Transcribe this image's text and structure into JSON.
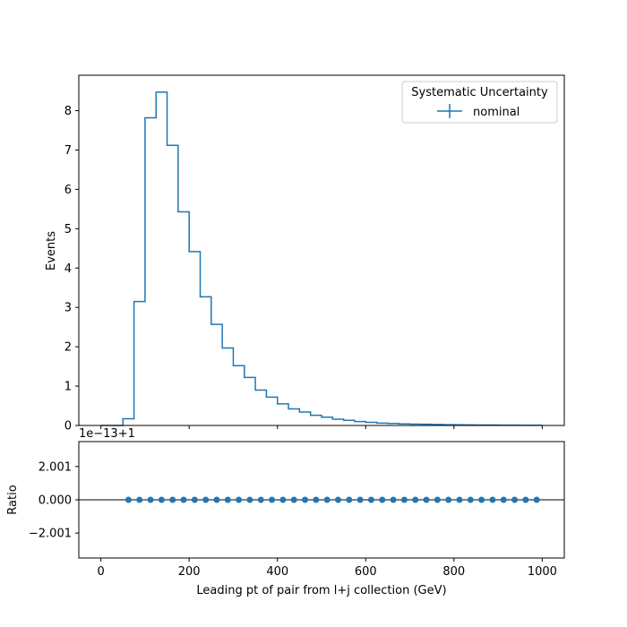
{
  "chart_data": [
    {
      "type": "step",
      "xlabel": "",
      "ylabel": "Events",
      "xlim": [
        -50,
        1050
      ],
      "ylim": [
        0,
        8.9
      ],
      "x_ticks": [
        0,
        200,
        400,
        600,
        800,
        1000
      ],
      "y_ticks": [
        0,
        1,
        2,
        3,
        4,
        5,
        6,
        7,
        8
      ],
      "y_tick_labels": [
        "0",
        "1",
        "2",
        "3",
        "4",
        "5",
        "6",
        "7",
        "8"
      ],
      "bin_edges": [
        0,
        25,
        50,
        75,
        100,
        125,
        150,
        175,
        200,
        225,
        250,
        275,
        300,
        325,
        350,
        375,
        400,
        425,
        450,
        475,
        500,
        525,
        550,
        575,
        600,
        625,
        650,
        675,
        700,
        725,
        750,
        775,
        800,
        825,
        850,
        875,
        900,
        925,
        950,
        975,
        1000
      ],
      "series": [
        {
          "name": "nominal",
          "color": "#1f77b4",
          "values": [
            0.0,
            0.0,
            0.17,
            3.15,
            7.82,
            8.47,
            7.12,
            5.43,
            4.42,
            3.27,
            2.57,
            1.97,
            1.52,
            1.22,
            0.9,
            0.72,
            0.55,
            0.42,
            0.34,
            0.26,
            0.21,
            0.16,
            0.13,
            0.1,
            0.08,
            0.06,
            0.05,
            0.04,
            0.035,
            0.03,
            0.025,
            0.02,
            0.017,
            0.015,
            0.012,
            0.01,
            0.009,
            0.008,
            0.007,
            0.006
          ]
        }
      ],
      "legend": {
        "title": "Systematic Uncertainty",
        "entries": [
          "nominal"
        ],
        "placement": "upper right"
      }
    },
    {
      "type": "scatter",
      "xlabel": "Leading pt of pair from l+j collection (GeV)",
      "ylabel": "Ratio",
      "xlim": [
        -50,
        1050
      ],
      "ylim": [
        -3.5,
        3.5
      ],
      "offset_label": "1e−13+1",
      "x_ticks": [
        0,
        200,
        400,
        600,
        800,
        1000
      ],
      "x_tick_labels": [
        "0",
        "200",
        "400",
        "600",
        "800",
        "1000"
      ],
      "y_ticks": [
        -2.001,
        0,
        2.001
      ],
      "y_tick_labels": [
        "−2.001",
        "0.000",
        "2.001"
      ],
      "reference_line": 0,
      "series": [
        {
          "name": "nominal",
          "color": "#1f77b4",
          "x": [
            62.5,
            87.5,
            112.5,
            137.5,
            162.5,
            187.5,
            212.5,
            237.5,
            262.5,
            287.5,
            312.5,
            337.5,
            362.5,
            387.5,
            412.5,
            437.5,
            462.5,
            487.5,
            512.5,
            537.5,
            562.5,
            587.5,
            612.5,
            637.5,
            662.5,
            687.5,
            712.5,
            737.5,
            762.5,
            787.5,
            812.5,
            837.5,
            862.5,
            887.5,
            912.5,
            937.5,
            962.5,
            987.5
          ],
          "y": [
            0,
            0,
            0,
            0,
            0,
            0,
            0,
            0,
            0,
            0,
            0,
            0,
            0,
            0,
            0,
            0,
            0,
            0,
            0,
            0,
            0,
            0,
            0,
            0,
            0,
            0,
            0,
            0,
            0,
            0,
            0,
            0,
            0,
            0,
            0,
            0,
            0,
            0
          ]
        }
      ]
    }
  ]
}
